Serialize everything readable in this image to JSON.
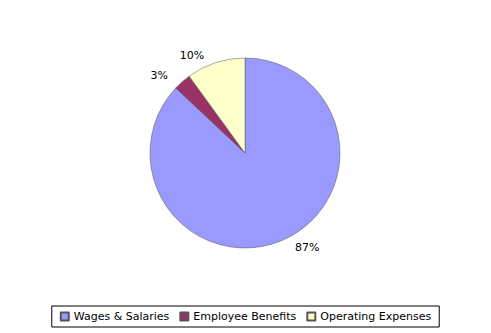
{
  "chart_data": {
    "type": "pie",
    "categories": [
      "Wages & Salaries",
      "Employee Benefits",
      "Operating Expenses"
    ],
    "values": [
      87,
      3,
      10
    ],
    "value_labels": [
      "87%",
      "3%",
      "10%"
    ],
    "colors": [
      "#9999ff",
      "#993366",
      "#ffffcc"
    ],
    "legend": "bottom"
  }
}
